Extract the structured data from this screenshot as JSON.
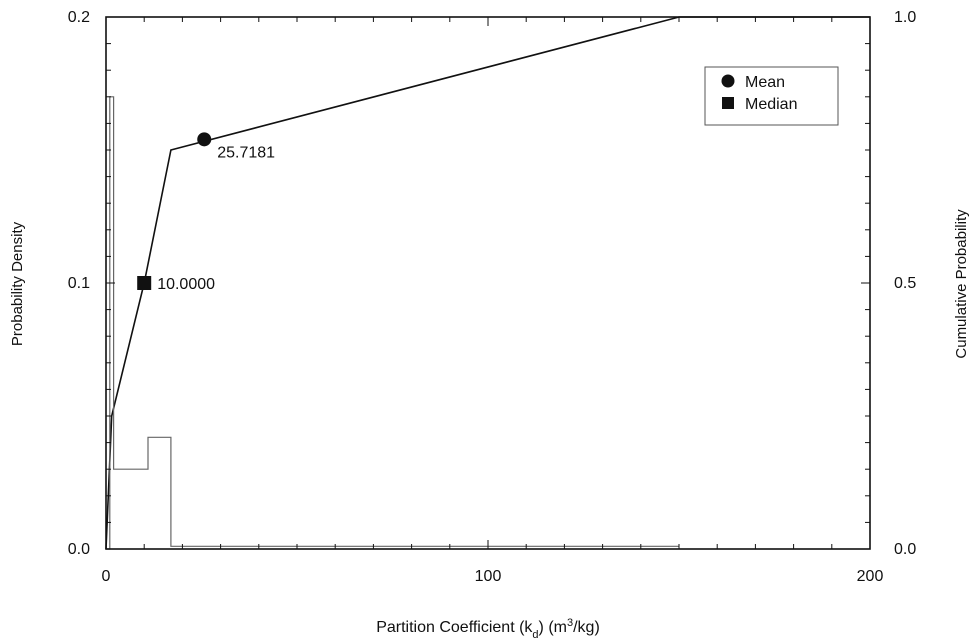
{
  "chart_data": {
    "type": "line",
    "title": "",
    "xlabel": "Partition Coefficient (k",
    "xlabel_sub": "d",
    "xlabel_after": ") (m",
    "xlabel_sup": "3",
    "xlabel_end": "/kg)",
    "ylabel_left": "Probability Density",
    "ylabel_right": "Cumulative Probability",
    "xlim": [
      0,
      200
    ],
    "ylim_left": [
      0,
      0.2
    ],
    "ylim_right": [
      0,
      1
    ],
    "x_ticks": [
      0,
      100,
      200
    ],
    "x_tick_labels": [
      "0",
      "100",
      "200"
    ],
    "y_left_ticks": [
      0,
      0.1,
      0.2
    ],
    "y_left_tick_labels": [
      "0.0",
      "0.1",
      "0.2"
    ],
    "y_right_ticks": [
      0,
      0.5,
      1
    ],
    "y_right_tick_labels": [
      "0.0",
      "0.5",
      "1.0"
    ],
    "grid": false,
    "legend_position": "top-right",
    "legend": [
      {
        "label": "Mean",
        "marker": "circle"
      },
      {
        "label": "Median",
        "marker": "square"
      }
    ],
    "series": [
      {
        "role": "cumulative",
        "axis": "right",
        "x": [
          0,
          1.5,
          10,
          17,
          150,
          200
        ],
        "y": [
          0,
          0.25,
          0.5,
          0.75,
          1.0,
          1.0
        ]
      },
      {
        "role": "density",
        "axis": "left",
        "step": true,
        "x": [
          0,
          1,
          1,
          2,
          2,
          11,
          11,
          17,
          17,
          150
        ],
        "y": [
          0,
          0,
          0.17,
          0.17,
          0.03,
          0.03,
          0.042,
          0.042,
          0.001,
          0.001
        ]
      }
    ],
    "markers": [
      {
        "name": "Mean",
        "shape": "circle",
        "x": 25.7181,
        "y": 0.77,
        "axis": "right",
        "label": "25.7181"
      },
      {
        "name": "Median",
        "shape": "square",
        "x": 10.0,
        "y": 0.5,
        "axis": "right",
        "label": "10.0000"
      }
    ],
    "colors": {
      "line": "#111111",
      "density": "#666666",
      "background": "#ffffff"
    }
  }
}
